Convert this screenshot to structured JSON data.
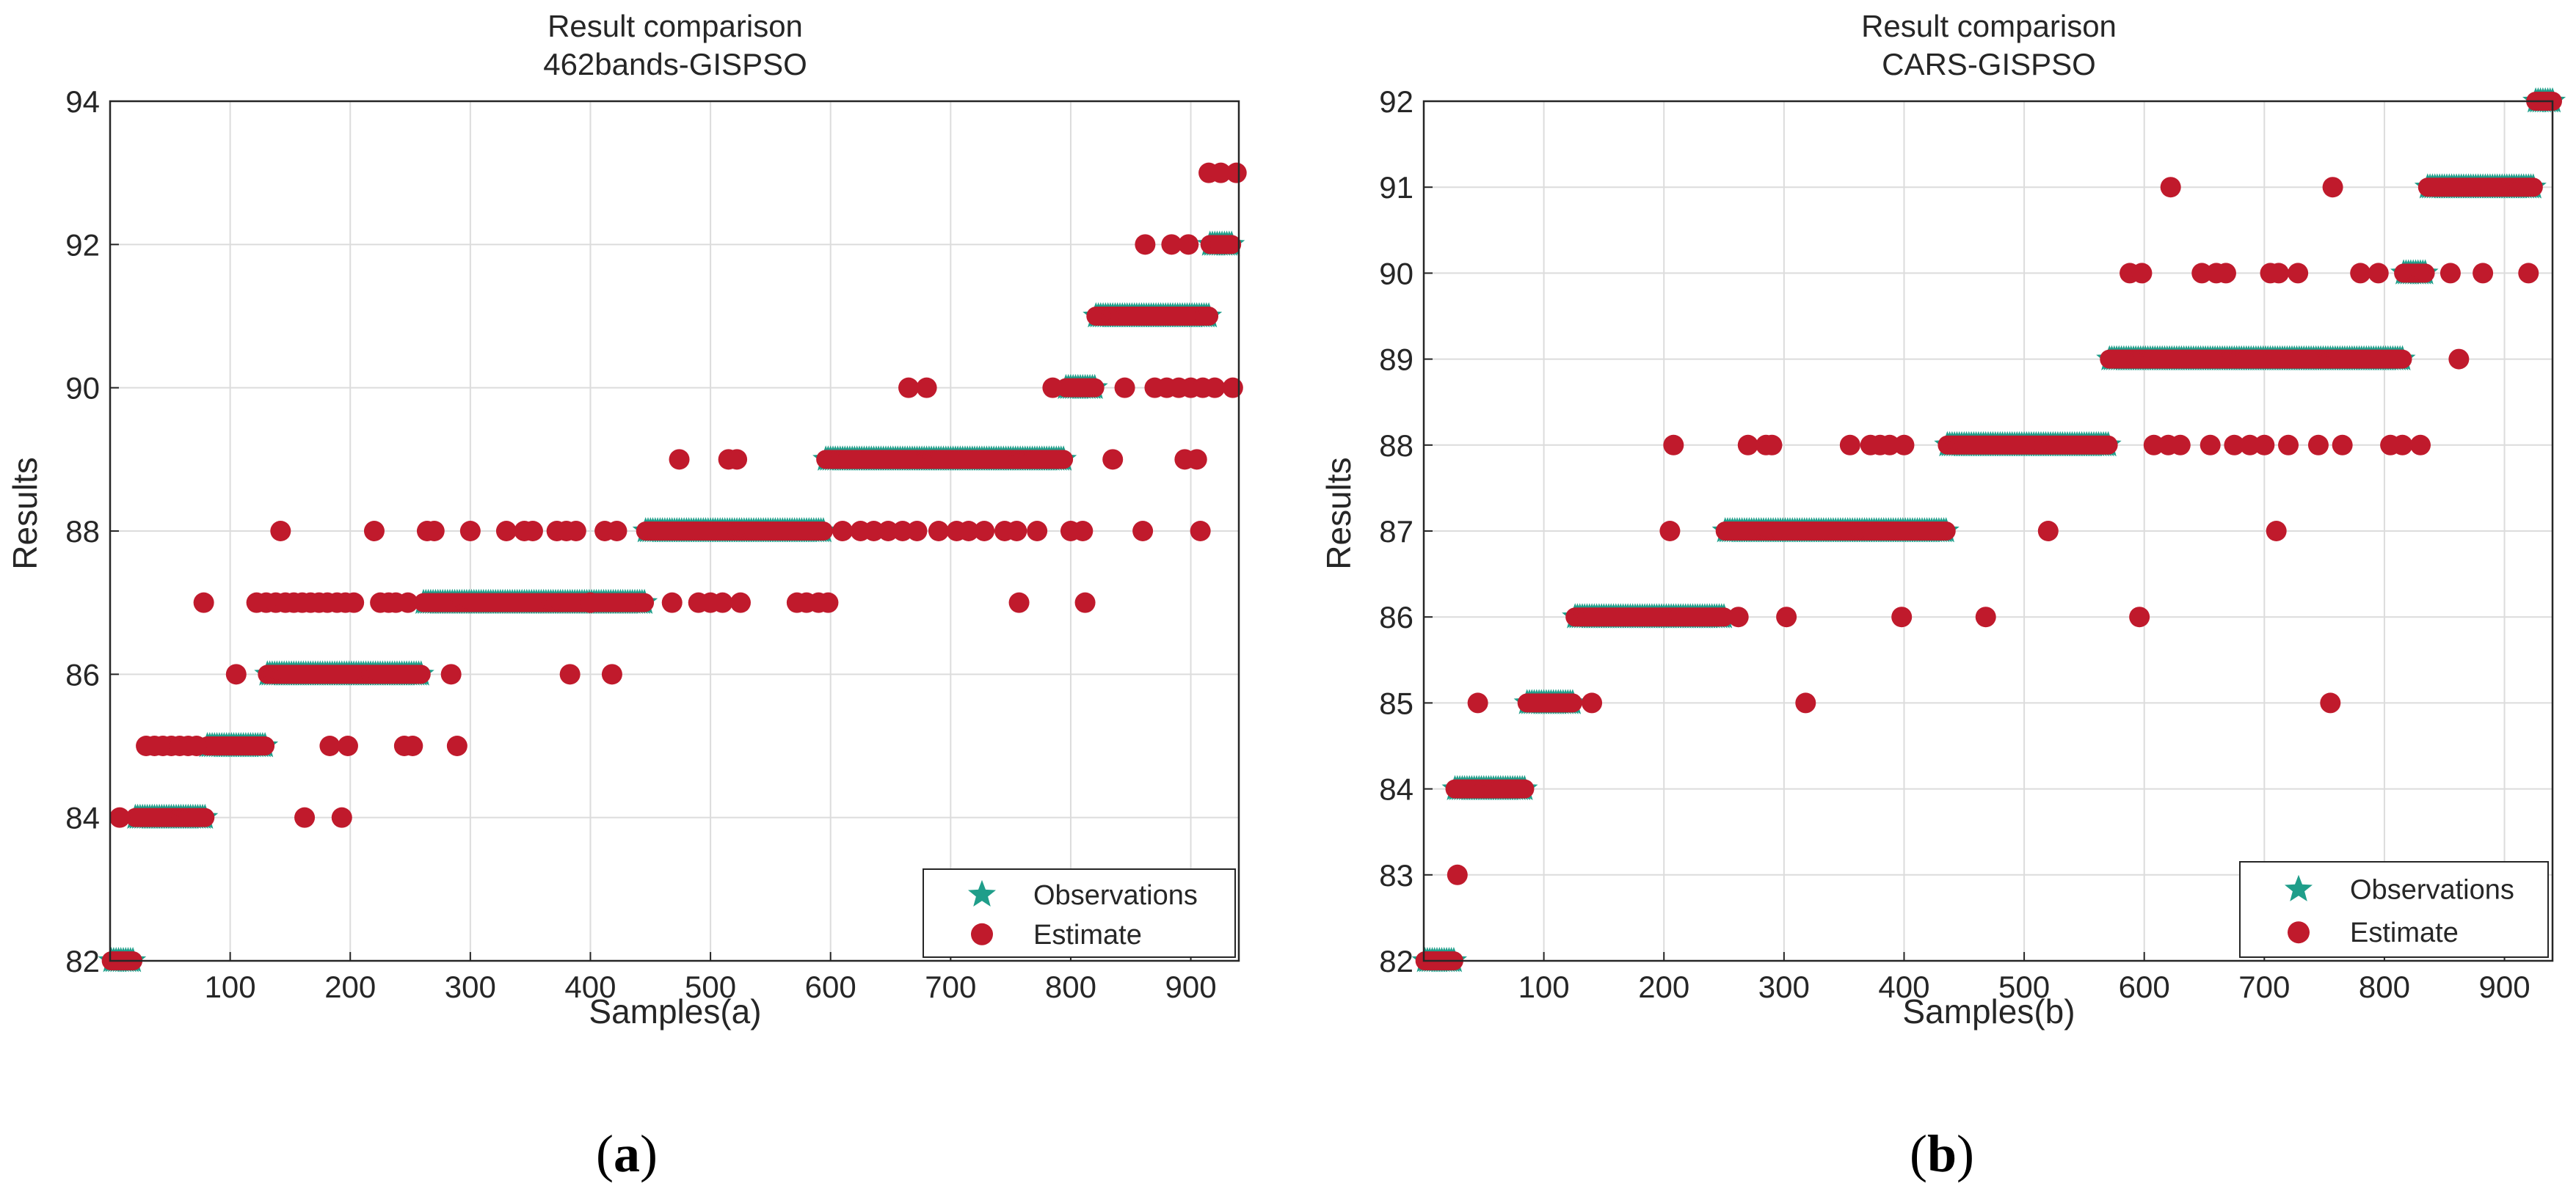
{
  "colors": {
    "observation": "#1f9e8a",
    "estimate": "#c01a2c",
    "grid": "#dcdcdc",
    "axis": "#262626"
  },
  "chart_data": [
    {
      "type": "scatter",
      "title": "Result comparison",
      "subtitle": "462bands-GISPSO",
      "xlabel": "Samples(a)",
      "ylabel": "Results",
      "xlim": [
        0,
        940
      ],
      "ylim": [
        82,
        94
      ],
      "xticks": [
        100,
        200,
        300,
        400,
        500,
        600,
        700,
        800,
        900
      ],
      "yticks": [
        82,
        84,
        86,
        88,
        90,
        92,
        94
      ],
      "grid": true,
      "legend": {
        "position": "bottom-right",
        "entries": [
          "Observations",
          "Estimate"
        ]
      },
      "caption": "(a)",
      "series": [
        {
          "name": "Observations",
          "marker": "star",
          "segments": [
            {
              "from": 1,
              "to": 20,
              "value": 82
            },
            {
              "from": 21,
              "to": 80,
              "value": 84
            },
            {
              "from": 81,
              "to": 130,
              "value": 85
            },
            {
              "from": 131,
              "to": 260,
              "value": 86
            },
            {
              "from": 261,
              "to": 445,
              "value": 87
            },
            {
              "from": 446,
              "to": 595,
              "value": 88
            },
            {
              "from": 596,
              "to": 795,
              "value": 89
            },
            {
              "from": 796,
              "to": 820,
              "value": 90
            },
            {
              "from": 821,
              "to": 915,
              "value": 91
            },
            {
              "from": 916,
              "to": 935,
              "value": 92
            }
          ]
        },
        {
          "name": "Estimate",
          "marker": "circle",
          "segments": [
            {
              "from": 1,
              "to": 20,
              "value": 82
            },
            {
              "from": 21,
              "to": 80,
              "value": 84
            },
            {
              "from": 81,
              "to": 130,
              "value": 85
            },
            {
              "from": 131,
              "to": 260,
              "value": 86
            },
            {
              "from": 261,
              "to": 445,
              "value": 87
            },
            {
              "from": 446,
              "to": 595,
              "value": 88
            },
            {
              "from": 596,
              "to": 795,
              "value": 89
            },
            {
              "from": 796,
              "to": 820,
              "value": 90
            },
            {
              "from": 821,
              "to": 915,
              "value": 91
            },
            {
              "from": 916,
              "to": 935,
              "value": 92
            }
          ],
          "points": [
            [
              8,
              84
            ],
            [
              30,
              85
            ],
            [
              37,
              85
            ],
            [
              44,
              85
            ],
            [
              51,
              85
            ],
            [
              58,
              85
            ],
            [
              65,
              85
            ],
            [
              72,
              85
            ],
            [
              78,
              87
            ],
            [
              105,
              86
            ],
            [
              122,
              87
            ],
            [
              130,
              87
            ],
            [
              138,
              87
            ],
            [
              142,
              88
            ],
            [
              146,
              87
            ],
            [
              153,
              87
            ],
            [
              160,
              87
            ],
            [
              162,
              84
            ],
            [
              167,
              87
            ],
            [
              174,
              87
            ],
            [
              181,
              87
            ],
            [
              183,
              85
            ],
            [
              189,
              87
            ],
            [
              193,
              84
            ],
            [
              196,
              87
            ],
            [
              198,
              85
            ],
            [
              203,
              87
            ],
            [
              220,
              88
            ],
            [
              225,
              87
            ],
            [
              232,
              87
            ],
            [
              238,
              87
            ],
            [
              245,
              85
            ],
            [
              248,
              87
            ],
            [
              252,
              85
            ],
            [
              264,
              88
            ],
            [
              270,
              88
            ],
            [
              284,
              86
            ],
            [
              289,
              85
            ],
            [
              300,
              88
            ],
            [
              330,
              88
            ],
            [
              345,
              88
            ],
            [
              352,
              88
            ],
            [
              372,
              88
            ],
            [
              380,
              88
            ],
            [
              383,
              86
            ],
            [
              388,
              88
            ],
            [
              400,
              87
            ],
            [
              412,
              88
            ],
            [
              418,
              86
            ],
            [
              422,
              88
            ],
            [
              468,
              87
            ],
            [
              474,
              89
            ],
            [
              490,
              87
            ],
            [
              500,
              87
            ],
            [
              510,
              87
            ],
            [
              515,
              89
            ],
            [
              522,
              89
            ],
            [
              525,
              87
            ],
            [
              572,
              87
            ],
            [
              580,
              87
            ],
            [
              590,
              87
            ],
            [
              598,
              87
            ],
            [
              610,
              88
            ],
            [
              625,
              88
            ],
            [
              636,
              88
            ],
            [
              648,
              88
            ],
            [
              660,
              88
            ],
            [
              665,
              90
            ],
            [
              672,
              88
            ],
            [
              680,
              90
            ],
            [
              690,
              88
            ],
            [
              705,
              88
            ],
            [
              715,
              88
            ],
            [
              728,
              88
            ],
            [
              745,
              88
            ],
            [
              755,
              88
            ],
            [
              757,
              87
            ],
            [
              772,
              88
            ],
            [
              785,
              90
            ],
            [
              800,
              88
            ],
            [
              810,
              88
            ],
            [
              812,
              87
            ],
            [
              835,
              89
            ],
            [
              845,
              90
            ],
            [
              860,
              88
            ],
            [
              862,
              92
            ],
            [
              870,
              90
            ],
            [
              880,
              90
            ],
            [
              884,
              92
            ],
            [
              890,
              90
            ],
            [
              895,
              89
            ],
            [
              898,
              92
            ],
            [
              900,
              90
            ],
            [
              905,
              89
            ],
            [
              908,
              88
            ],
            [
              910,
              90
            ],
            [
              915,
              93
            ],
            [
              920,
              90
            ],
            [
              925,
              93
            ],
            [
              935,
              90
            ],
            [
              938,
              93
            ]
          ]
        }
      ]
    },
    {
      "type": "scatter",
      "title": "Result comparison",
      "subtitle": "CARS-GISPSO",
      "xlabel": "Samples(b)",
      "ylabel": "Results",
      "xlim": [
        0,
        940
      ],
      "ylim": [
        82,
        92
      ],
      "xticks": [
        100,
        200,
        300,
        400,
        500,
        600,
        700,
        800,
        900
      ],
      "yticks": [
        82,
        83,
        84,
        85,
        86,
        87,
        88,
        89,
        90,
        91,
        92
      ],
      "grid": true,
      "legend": {
        "position": "bottom-right",
        "entries": [
          "Observations",
          "Estimate"
        ]
      },
      "caption": "(b)",
      "series": [
        {
          "name": "Observations",
          "marker": "star",
          "segments": [
            {
              "from": 1,
              "to": 25,
              "value": 82
            },
            {
              "from": 26,
              "to": 85,
              "value": 84
            },
            {
              "from": 86,
              "to": 125,
              "value": 85
            },
            {
              "from": 126,
              "to": 250,
              "value": 86
            },
            {
              "from": 251,
              "to": 435,
              "value": 87
            },
            {
              "from": 436,
              "to": 570,
              "value": 88
            },
            {
              "from": 571,
              "to": 815,
              "value": 89
            },
            {
              "from": 816,
              "to": 835,
              "value": 90
            },
            {
              "from": 836,
              "to": 925,
              "value": 91
            },
            {
              "from": 926,
              "to": 940,
              "value": 92
            }
          ]
        },
        {
          "name": "Estimate",
          "marker": "circle",
          "segments": [
            {
              "from": 1,
              "to": 25,
              "value": 82
            },
            {
              "from": 26,
              "to": 85,
              "value": 84
            },
            {
              "from": 86,
              "to": 125,
              "value": 85
            },
            {
              "from": 126,
              "to": 250,
              "value": 86
            },
            {
              "from": 251,
              "to": 435,
              "value": 87
            },
            {
              "from": 436,
              "to": 570,
              "value": 88
            },
            {
              "from": 571,
              "to": 815,
              "value": 89
            },
            {
              "from": 816,
              "to": 835,
              "value": 90
            },
            {
              "from": 836,
              "to": 925,
              "value": 91
            },
            {
              "from": 926,
              "to": 940,
              "value": 92
            }
          ],
          "points": [
            [
              28,
              83
            ],
            [
              45,
              85
            ],
            [
              140,
              85
            ],
            [
              205,
              87
            ],
            [
              208,
              88
            ],
            [
              262,
              86
            ],
            [
              270,
              88
            ],
            [
              285,
              88
            ],
            [
              290,
              88
            ],
            [
              302,
              86
            ],
            [
              318,
              85
            ],
            [
              355,
              88
            ],
            [
              372,
              88
            ],
            [
              380,
              88
            ],
            [
              388,
              88
            ],
            [
              398,
              86
            ],
            [
              400,
              88
            ],
            [
              468,
              86
            ],
            [
              520,
              87
            ],
            [
              588,
              90
            ],
            [
              596,
              86
            ],
            [
              598,
              90
            ],
            [
              608,
              88
            ],
            [
              620,
              88
            ],
            [
              622,
              91
            ],
            [
              630,
              88
            ],
            [
              648,
              90
            ],
            [
              655,
              88
            ],
            [
              660,
              90
            ],
            [
              668,
              90
            ],
            [
              675,
              88
            ],
            [
              688,
              88
            ],
            [
              700,
              88
            ],
            [
              705,
              90
            ],
            [
              710,
              87
            ],
            [
              712,
              90
            ],
            [
              720,
              88
            ],
            [
              728,
              90
            ],
            [
              745,
              88
            ],
            [
              755,
              85
            ],
            [
              757,
              91
            ],
            [
              765,
              88
            ],
            [
              780,
              90
            ],
            [
              795,
              90
            ],
            [
              805,
              88
            ],
            [
              815,
              88
            ],
            [
              830,
              88
            ],
            [
              855,
              90
            ],
            [
              862,
              89
            ],
            [
              882,
              90
            ],
            [
              920,
              90
            ]
          ]
        }
      ]
    }
  ]
}
